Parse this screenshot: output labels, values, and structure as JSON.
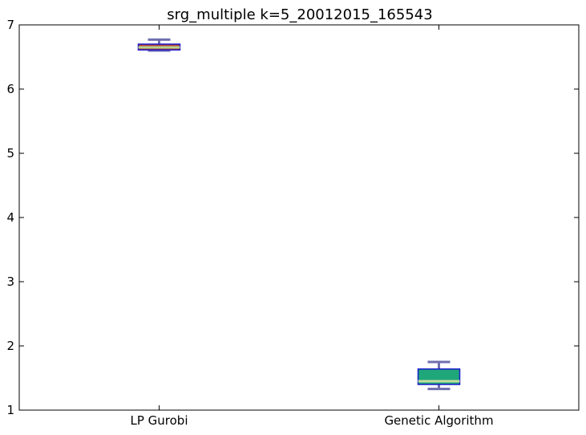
{
  "chart_data": {
    "type": "box",
    "title": "srg_multiple k=5_20012015_165543",
    "xlabel": "",
    "ylabel": "",
    "categories": [
      "LP Gurobi",
      "Genetic Algorithm"
    ],
    "ylim": [
      1,
      7
    ],
    "yticks": [
      1,
      2,
      3,
      4,
      5,
      6,
      7
    ],
    "grid": false,
    "boxes": [
      {
        "name": "LP Gurobi",
        "whisker_low": 6.6,
        "q1": 6.61,
        "median": 6.65,
        "q3": 6.7,
        "whisker_high": 6.77,
        "fill": "#b5443a",
        "stroke": "#1a1acc",
        "whisker_color": "#6f6fb0",
        "median_color": "#b7d48f"
      },
      {
        "name": "Genetic Algorithm",
        "whisker_low": 1.33,
        "q1": 1.4,
        "median": 1.45,
        "q3": 1.64,
        "whisker_high": 1.75,
        "fill": "#1fa77a",
        "stroke": "#1a1acc",
        "whisker_color": "#6f6fb0",
        "median_color": "#c5dca0"
      }
    ]
  }
}
